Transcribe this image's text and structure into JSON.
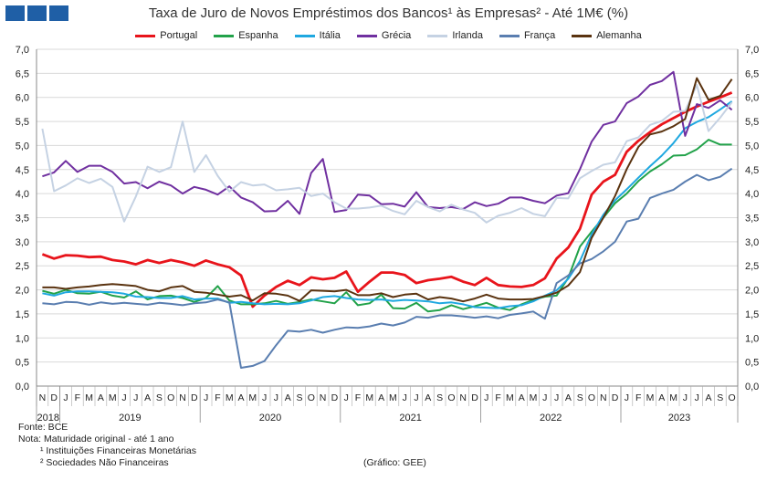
{
  "title": "Taxa de Juro de Novos Empréstimos dos Bancos¹ às Empresas² - Até 1M€ (%)",
  "notes": {
    "source": "Fonte: BCE",
    "note": "Nota: Maturidade original - até 1 ano",
    "footnote1": "¹ Instituições Financeiras Monetárias",
    "footnote2": "² Sociedades Não Financeiras",
    "credit": "(Gráfico: GEE)"
  },
  "chart_data": {
    "type": "line",
    "title": "Taxa de Juro de Novos Empréstimos dos Bancos¹ às Empresas² - Até 1M€ (%)",
    "ylim": [
      0,
      7
    ],
    "yticks": [
      "0,0",
      "0,5",
      "1,0",
      "1,5",
      "2,0",
      "2,5",
      "3,0",
      "3,5",
      "4,0",
      "4,5",
      "5,0",
      "5,5",
      "6,0",
      "6,5",
      "7,0"
    ],
    "dual_y_axis": true,
    "grid": true,
    "legend_position": "top",
    "x": [
      "2018-11",
      "2018-12",
      "2019-01",
      "2019-02",
      "2019-03",
      "2019-04",
      "2019-05",
      "2019-06",
      "2019-07",
      "2019-08",
      "2019-09",
      "2019-10",
      "2019-11",
      "2019-12",
      "2020-01",
      "2020-02",
      "2020-03",
      "2020-04",
      "2020-05",
      "2020-06",
      "2020-07",
      "2020-08",
      "2020-09",
      "2020-10",
      "2020-11",
      "2020-12",
      "2021-01",
      "2021-02",
      "2021-03",
      "2021-04",
      "2021-05",
      "2021-06",
      "2021-07",
      "2021-08",
      "2021-09",
      "2021-10",
      "2021-11",
      "2021-12",
      "2022-01",
      "2022-02",
      "2022-03",
      "2022-04",
      "2022-05",
      "2022-06",
      "2022-07",
      "2022-08",
      "2022-09",
      "2022-10",
      "2022-11",
      "2022-12",
      "2023-01",
      "2023-02",
      "2023-03",
      "2023-04",
      "2023-05",
      "2023-06",
      "2023-07",
      "2023-08",
      "2023-09",
      "2023-10"
    ],
    "month_ticks": [
      "N",
      "D",
      "J",
      "F",
      "M",
      "A",
      "M",
      "J",
      "J",
      "A",
      "S",
      "O",
      "N",
      "D",
      "J",
      "F",
      "M",
      "A",
      "M",
      "J",
      "J",
      "A",
      "S",
      "O",
      "N",
      "D",
      "J",
      "F",
      "M",
      "A",
      "M",
      "J",
      "J",
      "A",
      "S",
      "O",
      "N",
      "D",
      "J",
      "F",
      "M",
      "A",
      "M",
      "J",
      "J",
      "A",
      "S",
      "O",
      "N",
      "D",
      "J",
      "F",
      "M",
      "A",
      "M",
      "J",
      "J",
      "A",
      "S",
      "O"
    ],
    "year_labels": [
      "2018",
      "2019",
      "2020",
      "2021",
      "2022",
      "2023"
    ],
    "series": [
      {
        "name": "Portugal",
        "color": "#e8141b",
        "values": [
          2.74,
          2.65,
          2.72,
          2.71,
          2.68,
          2.69,
          2.62,
          2.59,
          2.53,
          2.62,
          2.56,
          2.62,
          2.57,
          2.5,
          2.61,
          2.53,
          2.47,
          2.3,
          1.65,
          1.88,
          2.06,
          2.19,
          2.1,
          2.26,
          2.22,
          2.25,
          2.38,
          1.96,
          2.17,
          2.36,
          2.36,
          2.31,
          2.14,
          2.2,
          2.23,
          2.27,
          2.17,
          2.1,
          2.25,
          2.1,
          2.07,
          2.06,
          2.1,
          2.24,
          2.65,
          2.88,
          3.27,
          3.98,
          4.25,
          4.39,
          4.87,
          5.1,
          5.28,
          5.44,
          5.57,
          5.7,
          5.81,
          5.91,
          6.0,
          6.1
        ]
      },
      {
        "name": "Espanha",
        "color": "#22a24a",
        "values": [
          1.98,
          1.92,
          2.0,
          1.93,
          1.92,
          1.96,
          1.88,
          1.84,
          1.97,
          1.8,
          1.87,
          1.88,
          1.83,
          1.75,
          1.83,
          2.08,
          1.78,
          1.7,
          1.7,
          1.72,
          1.77,
          1.71,
          1.75,
          1.8,
          1.76,
          1.72,
          1.95,
          1.68,
          1.72,
          1.9,
          1.62,
          1.61,
          1.73,
          1.55,
          1.58,
          1.68,
          1.6,
          1.66,
          1.73,
          1.63,
          1.58,
          1.7,
          1.79,
          1.86,
          1.88,
          2.25,
          2.9,
          3.21,
          3.5,
          3.8,
          4.0,
          4.26,
          4.46,
          4.61,
          4.79,
          4.8,
          4.92,
          5.12,
          5.02,
          5.02
        ]
      },
      {
        "name": "Itália",
        "color": "#1fa8e0",
        "values": [
          1.93,
          1.88,
          1.95,
          1.97,
          1.97,
          1.96,
          1.95,
          1.92,
          1.86,
          1.85,
          1.83,
          1.83,
          1.87,
          1.8,
          1.82,
          1.82,
          1.73,
          1.75,
          1.72,
          1.7,
          1.71,
          1.7,
          1.72,
          1.78,
          1.85,
          1.87,
          1.83,
          1.8,
          1.79,
          1.8,
          1.77,
          1.79,
          1.78,
          1.76,
          1.72,
          1.74,
          1.7,
          1.64,
          1.63,
          1.62,
          1.66,
          1.68,
          1.76,
          1.88,
          1.99,
          2.23,
          2.6,
          3.15,
          3.56,
          3.86,
          4.09,
          4.33,
          4.57,
          4.79,
          5.05,
          5.36,
          5.49,
          5.59,
          5.75,
          5.92
        ]
      },
      {
        "name": "Grécia",
        "color": "#7030a0",
        "values": [
          4.36,
          4.44,
          4.68,
          4.45,
          4.58,
          4.58,
          4.45,
          4.21,
          4.24,
          4.11,
          4.25,
          4.17,
          4.0,
          4.14,
          4.08,
          3.98,
          4.15,
          3.92,
          3.82,
          3.63,
          3.64,
          3.85,
          3.58,
          4.43,
          4.72,
          3.62,
          3.66,
          3.98,
          3.96,
          3.78,
          3.79,
          3.73,
          4.03,
          3.72,
          3.7,
          3.72,
          3.68,
          3.82,
          3.74,
          3.79,
          3.92,
          3.92,
          3.85,
          3.8,
          3.96,
          4.01,
          4.51,
          5.08,
          5.43,
          5.5,
          5.88,
          6.02,
          6.26,
          6.34,
          6.53,
          5.2,
          5.86,
          5.78,
          5.94,
          5.74
        ]
      },
      {
        "name": "Irlanda",
        "color": "#c5d2e3",
        "values": [
          5.35,
          4.05,
          4.17,
          4.32,
          4.22,
          4.31,
          4.14,
          3.42,
          3.94,
          4.56,
          4.45,
          4.55,
          5.5,
          4.45,
          4.8,
          4.37,
          4.04,
          4.24,
          4.17,
          4.19,
          4.07,
          4.09,
          4.12,
          3.95,
          4.0,
          3.82,
          3.69,
          3.69,
          3.71,
          3.75,
          3.64,
          3.57,
          3.85,
          3.72,
          3.63,
          3.77,
          3.67,
          3.6,
          3.4,
          3.54,
          3.6,
          3.7,
          3.58,
          3.53,
          3.91,
          3.9,
          4.32,
          4.47,
          4.6,
          4.65,
          5.09,
          5.17,
          5.43,
          5.51,
          5.7,
          5.72,
          6.26,
          5.3,
          5.58,
          5.9
        ]
      },
      {
        "name": "França",
        "color": "#5a7eb0",
        "values": [
          1.72,
          1.7,
          1.75,
          1.74,
          1.69,
          1.74,
          1.71,
          1.73,
          1.71,
          1.69,
          1.73,
          1.71,
          1.68,
          1.72,
          1.74,
          1.8,
          1.74,
          0.38,
          0.42,
          0.52,
          0.85,
          1.15,
          1.13,
          1.17,
          1.11,
          1.17,
          1.22,
          1.21,
          1.24,
          1.3,
          1.26,
          1.32,
          1.44,
          1.42,
          1.47,
          1.47,
          1.45,
          1.42,
          1.45,
          1.41,
          1.48,
          1.51,
          1.55,
          1.4,
          2.14,
          2.3,
          2.55,
          2.64,
          2.8,
          3.0,
          3.42,
          3.48,
          3.91,
          4.0,
          4.08,
          4.25,
          4.39,
          4.28,
          4.35,
          4.52
        ]
      },
      {
        "name": "Alemanha",
        "color": "#5a3310",
        "values": [
          2.05,
          2.05,
          2.02,
          2.05,
          2.07,
          2.1,
          2.12,
          2.1,
          2.08,
          2.0,
          1.97,
          2.05,
          2.08,
          1.96,
          1.94,
          1.9,
          1.86,
          1.89,
          1.78,
          1.93,
          1.92,
          1.88,
          1.77,
          1.99,
          1.98,
          1.97,
          2.0,
          1.89,
          1.89,
          1.93,
          1.85,
          1.9,
          1.92,
          1.8,
          1.85,
          1.82,
          1.76,
          1.82,
          1.9,
          1.82,
          1.8,
          1.8,
          1.81,
          1.87,
          1.94,
          2.09,
          2.37,
          3.08,
          3.5,
          3.95,
          4.51,
          4.97,
          5.23,
          5.29,
          5.4,
          5.55,
          6.4,
          5.95,
          6.03,
          6.38
        ]
      }
    ]
  }
}
